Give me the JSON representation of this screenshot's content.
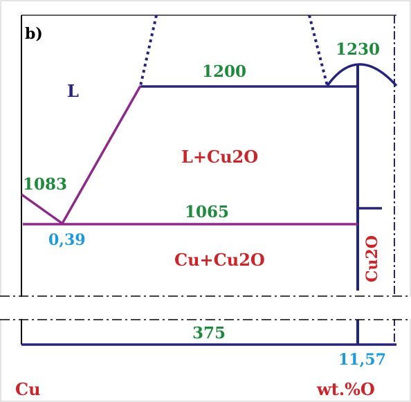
{
  "panel_label": "b)",
  "phase_regions": {
    "liquid": "L",
    "liquid_plus_oxide": "L+Cu2O",
    "solid_mixture": "Cu+Cu2O",
    "oxide_phase": "Cu2O"
  },
  "temperatures": {
    "cu_melting": "1083",
    "eutectic": "1065",
    "monotectic": "1200",
    "oxide_melting": "1230",
    "eutectoid": "375"
  },
  "compositions": {
    "eutectic_point": "0,39",
    "oxide_composition": "11,57"
  },
  "axis": {
    "left_label": "Cu",
    "right_label": "wt.%O"
  },
  "colors": {
    "phase_boundary": "#25237a",
    "liquidus_line": "#8c2a8a",
    "temperature_label": "#1f8a3e",
    "composition_label": "#1e9ad8",
    "region_label": "#c8262b",
    "frame": "#000000"
  }
}
